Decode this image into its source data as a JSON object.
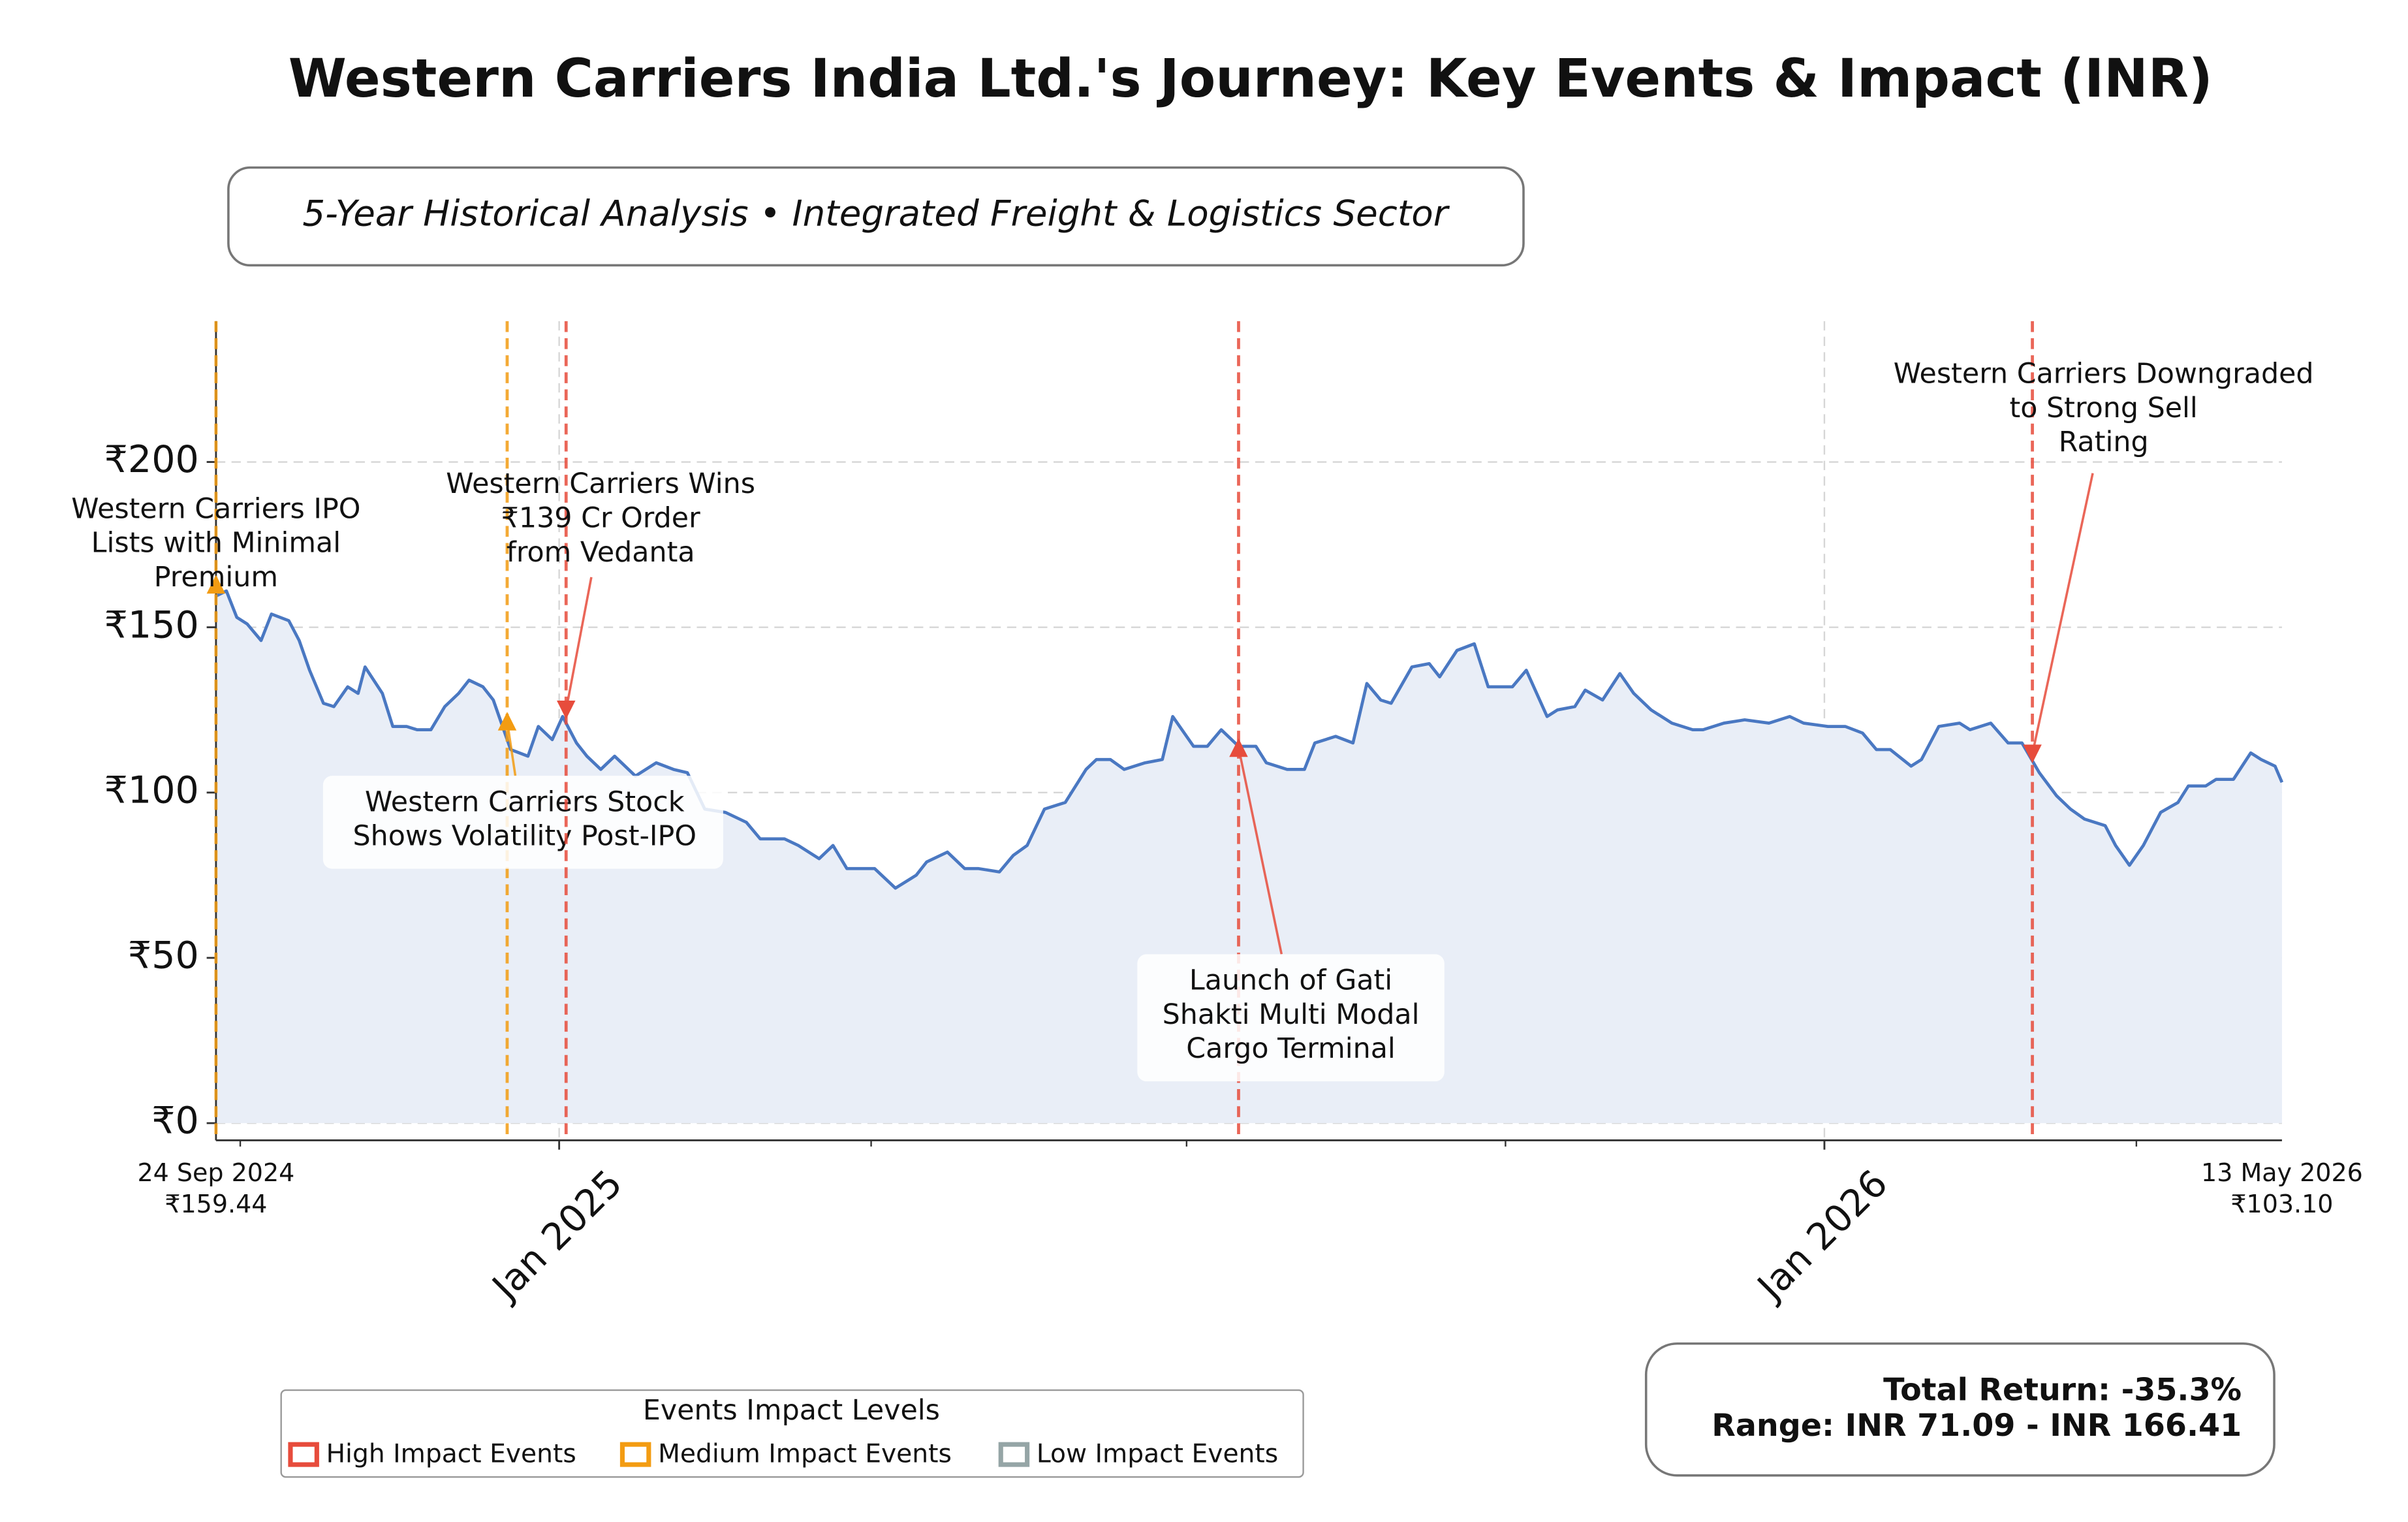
{
  "chart_data": {
    "type": "line",
    "title": "Western Carriers India Ltd.'s Journey: Key Events & Impact (INR)",
    "subtitle": "5-Year Historical Analysis • Integrated Freight & Logistics Sector",
    "x": [
      "2024-09-24",
      "2024-09-27",
      "2024-09-30",
      "2024-10-03",
      "2024-10-07",
      "2024-10-10",
      "2024-10-15",
      "2024-10-18",
      "2024-10-21",
      "2024-10-25",
      "2024-10-28",
      "2024-11-01",
      "2024-11-04",
      "2024-11-06",
      "2024-11-11",
      "2024-11-14",
      "2024-11-18",
      "2024-11-21",
      "2024-11-25",
      "2024-11-29",
      "2024-12-03",
      "2024-12-06",
      "2024-12-10",
      "2024-12-13",
      "2024-12-18",
      "2024-12-23",
      "2024-12-26",
      "2024-12-30",
      "2025-01-02",
      "2025-01-06",
      "2025-01-09",
      "2025-01-13",
      "2025-01-17",
      "2025-01-23",
      "2025-01-29",
      "2025-02-03",
      "2025-02-07",
      "2025-02-12",
      "2025-02-18",
      "2025-02-24",
      "2025-02-28",
      "2025-03-07",
      "2025-03-11",
      "2025-03-17",
      "2025-03-21",
      "2025-03-25",
      "2025-04-02",
      "2025-04-08",
      "2025-04-14",
      "2025-04-17",
      "2025-04-23",
      "2025-04-28",
      "2025-05-02",
      "2025-05-08",
      "2025-05-12",
      "2025-05-16",
      "2025-05-21",
      "2025-05-27",
      "2025-06-02",
      "2025-06-05",
      "2025-06-09",
      "2025-06-13",
      "2025-06-19",
      "2025-06-24",
      "2025-06-27",
      "2025-07-03",
      "2025-07-07",
      "2025-07-11",
      "2025-07-16",
      "2025-07-21",
      "2025-07-24",
      "2025-07-30",
      "2025-08-04",
      "2025-08-07",
      "2025-08-13",
      "2025-08-18",
      "2025-08-22",
      "2025-08-26",
      "2025-08-29",
      "2025-09-04",
      "2025-09-09",
      "2025-09-12",
      "2025-09-17",
      "2025-09-22",
      "2025-09-26",
      "2025-10-03",
      "2025-10-07",
      "2025-10-13",
      "2025-10-16",
      "2025-10-21",
      "2025-10-24",
      "2025-10-29",
      "2025-11-03",
      "2025-11-07",
      "2025-11-12",
      "2025-11-18",
      "2025-11-24",
      "2025-11-27",
      "2025-12-03",
      "2025-12-09",
      "2025-12-16",
      "2025-12-22",
      "2025-12-26",
      "2026-01-02",
      "2026-01-07",
      "2026-01-12",
      "2026-01-16",
      "2026-01-20",
      "2026-01-26",
      "2026-01-29",
      "2026-02-03",
      "2026-02-09",
      "2026-02-12",
      "2026-02-18",
      "2026-02-23",
      "2026-02-27",
      "2026-03-04",
      "2026-03-09",
      "2026-03-13",
      "2026-03-17",
      "2026-03-23",
      "2026-03-26",
      "2026-03-30",
      "2026-04-03",
      "2026-04-08",
      "2026-04-13",
      "2026-04-16",
      "2026-04-21",
      "2026-04-24",
      "2026-04-29",
      "2026-05-04",
      "2026-05-07",
      "2026-05-11",
      "2026-05-13"
    ],
    "series": [
      {
        "color": "#4a78c2",
        "fill": "#e9eef7",
        "values": [
          159.44,
          161,
          153,
          151,
          146,
          154,
          152,
          146,
          137,
          127,
          126,
          132,
          130,
          138,
          130,
          120,
          120,
          119,
          119,
          126,
          130,
          134,
          132,
          128,
          113,
          111,
          120,
          116,
          123,
          115,
          111,
          107,
          111,
          105,
          109,
          107,
          106,
          95,
          94,
          91,
          86,
          86,
          84,
          80,
          84,
          77,
          77,
          71.09,
          75,
          79,
          82,
          77,
          77,
          76,
          81,
          84,
          95,
          97,
          107,
          110,
          110,
          107,
          109,
          110,
          123,
          114,
          114,
          119,
          114,
          114,
          109,
          107,
          107,
          115,
          117,
          115,
          133,
          128,
          127,
          138,
          139,
          135,
          143,
          145,
          132,
          132,
          137,
          123,
          125,
          126,
          131,
          128,
          136,
          130,
          125,
          121,
          119,
          119,
          121,
          122,
          121,
          123,
          121,
          120,
          120,
          118,
          113,
          113,
          108,
          110,
          120,
          121,
          119,
          121,
          115,
          115,
          106,
          99,
          95,
          92,
          90,
          84,
          78,
          84,
          94,
          97,
          102,
          102,
          104,
          104,
          112,
          110,
          108,
          103.1
        ]
      }
    ],
    "xlim": [
      "2024-09-24",
      "2026-05-13"
    ],
    "xticks": [
      {
        "value": "2025-01-01",
        "label": "Jan 2025"
      },
      {
        "value": "2026-01-01",
        "label": "Jan 2026"
      }
    ],
    "xminorticks": [
      "2024-10-01",
      "2025-04-01",
      "2025-07-01",
      "2025-10-01",
      "2026-04-01"
    ],
    "ylim": [
      -5.2,
      242.6
    ],
    "yticks": [
      {
        "value": 0,
        "label": "₹0"
      },
      {
        "value": 50,
        "label": "₹50"
      },
      {
        "value": 100,
        "label": "₹100"
      },
      {
        "value": 150,
        "label": "₹150"
      },
      {
        "value": 200,
        "label": "₹200"
      }
    ],
    "grid": true,
    "endpoint_labels": [
      {
        "date": "24 Sep 2024",
        "price": "₹159.44"
      },
      {
        "date": "13 May 2026",
        "price": "₹103.10"
      }
    ],
    "events": [
      {
        "date": "2024-09-24",
        "price": 163,
        "color": "#f39c12",
        "text": [
          "Western Carriers IPO",
          "Lists with Minimal",
          "Premium"
        ]
      },
      {
        "date": "2024-12-17",
        "price": 121.6,
        "color": "#f39c12",
        "text": [
          "Western Carriers Stock",
          "Shows Volatility Post-IPO"
        ]
      },
      {
        "date": "2025-01-03",
        "price": 125,
        "color": "#e74c3c",
        "text": [
          "Western Carriers Wins",
          "₹139 Cr Order",
          "from Vedanta"
        ]
      },
      {
        "date": "2025-07-16",
        "price": 113.6,
        "color": "#e74c3c",
        "text": [
          "Launch of Gati",
          "Shakti Multi Modal",
          "Cargo Terminal"
        ]
      },
      {
        "date": "2026-03-02",
        "price": 111.7,
        "color": "#e74c3c",
        "text": [
          "Western Carriers Downgraded",
          "to Strong Sell",
          "Rating"
        ]
      }
    ],
    "legend": {
      "title": "Events Impact Levels",
      "items": [
        {
          "label": "High Impact Events",
          "color": "#e74c3c"
        },
        {
          "label": "Medium Impact Events",
          "color": "#f39c12"
        },
        {
          "label": "Low Impact Events",
          "color": "#95a5a6"
        }
      ]
    },
    "stats": [
      "Total Return: -35.3%",
      "Range: INR 71.09 - INR 166.41"
    ]
  }
}
